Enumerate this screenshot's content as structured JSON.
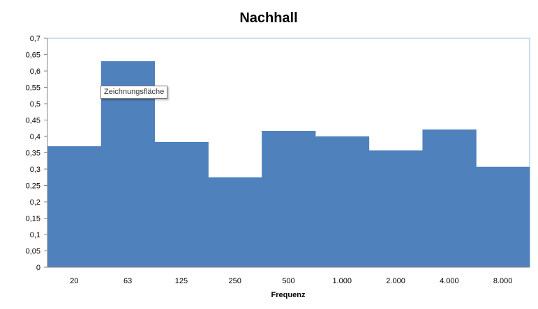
{
  "chart_data": {
    "type": "bar",
    "title": "Nachhall",
    "xlabel": "Frequenz",
    "ylabel": "",
    "categories": [
      "20",
      "63",
      "125",
      "250",
      "500",
      "1.000",
      "2.000",
      "4.000",
      "8.000"
    ],
    "values": [
      0.37,
      0.63,
      0.383,
      0.275,
      0.417,
      0.4,
      0.357,
      0.421,
      0.307
    ],
    "ylim": [
      0,
      0.7
    ],
    "yticks": [
      "0",
      "0,05",
      "0,1",
      "0,15",
      "0,2",
      "0,25",
      "0,3",
      "0,35",
      "0,4",
      "0,45",
      "0,5",
      "0,55",
      "0,6",
      "0,65",
      "0,7"
    ],
    "grid": false,
    "legend": "none",
    "bar_color": "#4f81bd",
    "tooltip": "Zeichnungsfläche"
  }
}
